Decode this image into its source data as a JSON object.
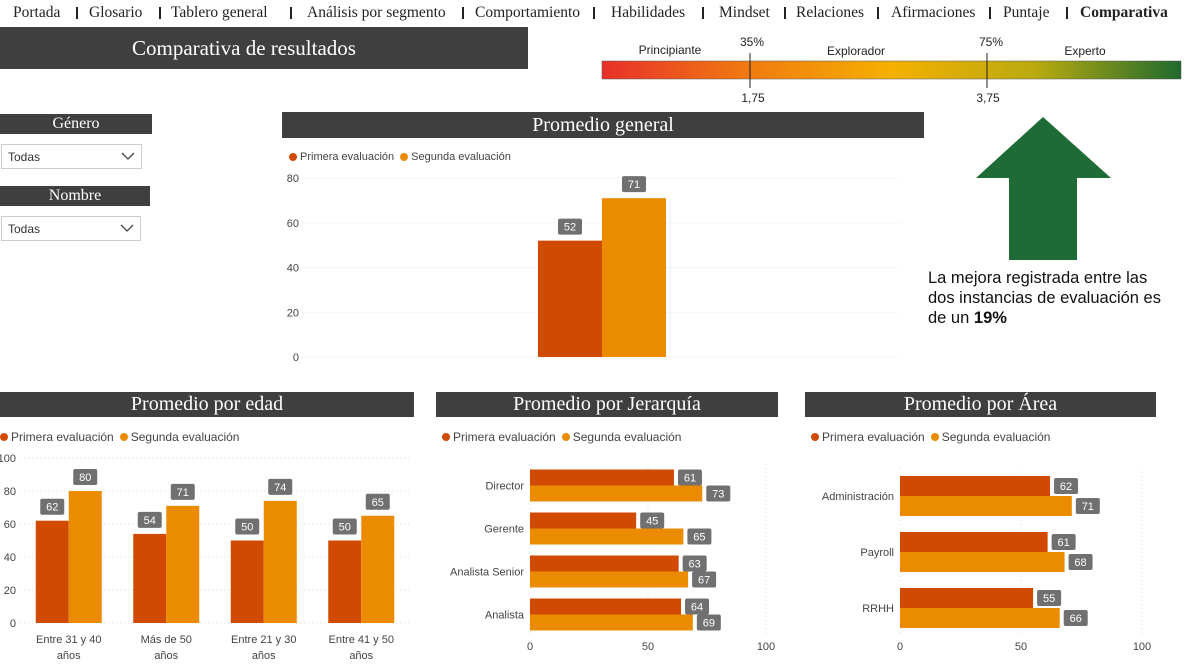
{
  "nav": {
    "items": [
      "Portada",
      "Glosario",
      "Tablero general",
      "Análisis por segmento",
      "Comportamiento",
      "Habilidades",
      "Mindset",
      "Relaciones",
      "Afirmaciones",
      "Puntaje",
      "Comparativa"
    ],
    "active": "Comparativa"
  },
  "page_title": "Comparativa de resultados",
  "scale": {
    "levels": [
      "Principiante",
      "Explorador",
      "Experto"
    ],
    "thresholds": [
      {
        "pct": "35%",
        "value": "1,75"
      },
      {
        "pct": "75%",
        "value": "3,75"
      }
    ],
    "colors": [
      "#e8402a",
      "#f0a000",
      "#c8b400",
      "#2a6e2a"
    ]
  },
  "filters": {
    "genero": {
      "label": "Género",
      "value": "Todas"
    },
    "nombre": {
      "label": "Nombre",
      "value": "Todas"
    }
  },
  "colors": {
    "primera": "#d04a02",
    "segunda": "#eb8c00",
    "arrow": "#1e6b35",
    "title_bg": "#3f3f3f"
  },
  "insight": {
    "text": "La mejora registrada entre las dos instancias de evaluación es de un",
    "highlight": "19%"
  },
  "chart_data": [
    {
      "id": "general",
      "type": "bar",
      "title": "Promedio general",
      "categories": [
        ""
      ],
      "series": [
        {
          "name": "Primera evaluación",
          "values": [
            52
          ]
        },
        {
          "name": "Segunda evaluación",
          "values": [
            71
          ]
        }
      ],
      "ylim": [
        0,
        80
      ],
      "yticks": [
        "0",
        "20",
        "40",
        "60",
        "80"
      ],
      "legend": "top-left"
    },
    {
      "id": "edad",
      "type": "bar",
      "title": "Promedio por edad",
      "categories": [
        "Entre 31 y 40 años",
        "Más de 50 años",
        "Entre 21 y 30 años",
        "Entre 41 y 50 años"
      ],
      "category_lines": [
        [
          "Entre 31 y 40",
          "años"
        ],
        [
          "Más de 50",
          "años"
        ],
        [
          "Entre 21 y 30",
          "años"
        ],
        [
          "Entre 41 y 50",
          "años"
        ]
      ],
      "series": [
        {
          "name": "Primera evaluación",
          "values": [
            62,
            54,
            50,
            50
          ]
        },
        {
          "name": "Segunda evaluación",
          "values": [
            80,
            71,
            74,
            65
          ]
        }
      ],
      "ylim": [
        0,
        100
      ],
      "yticks": [
        "0",
        "20",
        "40",
        "60",
        "80",
        "100"
      ],
      "legend": "top-left"
    },
    {
      "id": "jerarquia",
      "type": "bar",
      "orientation": "horizontal",
      "title": "Promedio por Jerarquía",
      "categories": [
        "Director",
        "Gerente",
        "Analista Senior",
        "Analista"
      ],
      "series": [
        {
          "name": "Primera evaluación",
          "values": [
            61,
            45,
            63,
            64
          ]
        },
        {
          "name": "Segunda evaluación",
          "values": [
            73,
            65,
            67,
            69
          ]
        }
      ],
      "xlim": [
        0,
        100
      ],
      "xticks": [
        "0",
        "50",
        "100"
      ],
      "legend": "top-left"
    },
    {
      "id": "area",
      "type": "bar",
      "orientation": "horizontal",
      "title": "Promedio por Área",
      "categories": [
        "Administración",
        "Payroll",
        "RRHH"
      ],
      "series": [
        {
          "name": "Primera evaluación",
          "values": [
            62,
            61,
            55
          ]
        },
        {
          "name": "Segunda evaluación",
          "values": [
            71,
            68,
            66
          ]
        }
      ],
      "xlim": [
        0,
        100
      ],
      "xticks": [
        "0",
        "50",
        "100"
      ],
      "legend": "top-left"
    }
  ]
}
